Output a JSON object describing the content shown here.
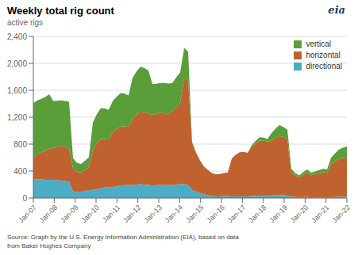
{
  "chart_data": {
    "type": "area",
    "stacked": true,
    "title": "Weekly total rig count",
    "subtitle": "active rigs",
    "annotations": [
      "Source: Graph by the U.S. Energy Information Administration (EIA), based on data\nfrom Baker Hughes Company",
      "eia"
    ],
    "x": [
      0,
      0.1899,
      0.3797,
      0.5696,
      0.7595,
      0.9494,
      1.1392,
      1.3291,
      1.519,
      1.7089,
      1.8987,
      2.0886,
      2.2785,
      2.4684,
      2.6582,
      2.8481,
      3.038,
      3.2278,
      3.4177,
      3.6076,
      3.7975,
      3.9873,
      4.1772,
      4.3671,
      4.557,
      4.7468,
      4.9367,
      5.1266,
      5.3165,
      5.5063,
      5.6962,
      5.8861,
      6.0759,
      6.2658,
      6.4557,
      6.6456,
      6.8354,
      7.0253,
      7.2152,
      7.4051,
      7.5949,
      7.7848,
      7.9747,
      8.1646,
      8.3544,
      8.5443,
      8.7342,
      8.9241,
      9.1139,
      9.3038,
      9.4937,
      9.6835,
      9.8734,
      10.0633,
      10.2532,
      10.443,
      10.6329,
      10.8228,
      11.0127,
      11.2025,
      11.3924,
      11.5823,
      11.7722,
      11.962,
      12.1519,
      12.3418,
      12.5316,
      12.7215,
      12.9114,
      13.1013,
      13.2911,
      13.481,
      13.6709,
      13.8608,
      14.0506,
      14.2405,
      14.4304,
      14.6203,
      14.8101,
      15
    ],
    "xlim": [
      0,
      15
    ],
    "xticks": [
      {
        "value": 0,
        "label": "Jan-07"
      },
      {
        "value": 1,
        "label": "Jan-08"
      },
      {
        "value": 2,
        "label": "Jan-09"
      },
      {
        "value": 3,
        "label": "Jan-10"
      },
      {
        "value": 4,
        "label": "Jan-11"
      },
      {
        "value": 5,
        "label": "Jan-12"
      },
      {
        "value": 6,
        "label": "Jan-13"
      },
      {
        "value": 7,
        "label": "Jan-14"
      },
      {
        "value": 8,
        "label": "Jan-15"
      },
      {
        "value": 9,
        "label": "Jan-16"
      },
      {
        "value": 10,
        "label": "Jan-17"
      },
      {
        "value": 11,
        "label": "Jan-18"
      },
      {
        "value": 12,
        "label": "Jan-19"
      },
      {
        "value": 13,
        "label": "Jan-20"
      },
      {
        "value": 14,
        "label": "Jan-21"
      },
      {
        "value": 15,
        "label": "Jan-22"
      }
    ],
    "ylim": [
      0,
      2400
    ],
    "yticks": [
      0,
      400,
      800,
      {
        "value": 1200,
        "label": "1,200"
      },
      {
        "value": 1600,
        "label": "1,600"
      },
      {
        "value": 2000,
        "label": "2,000"
      },
      {
        "value": 2400,
        "label": "2,400"
      }
    ],
    "grid": true,
    "legend": "upper right",
    "series": [
      {
        "name": "directional",
        "color": "#4bacc6",
        "values": [
          270,
          280,
          280,
          270,
          270,
          270,
          265,
          260,
          250,
          240,
          100,
          85,
          90,
          105,
          115,
          120,
          130,
          145,
          155,
          160,
          165,
          175,
          185,
          190,
          190,
          195,
          200,
          205,
          200,
          195,
          185,
          190,
          195,
          195,
          190,
          195,
          200,
          210,
          205,
          195,
          120,
          95,
          75,
          55,
          40,
          30,
          25,
          25,
          28,
          30,
          25,
          25,
          25,
          25,
          25,
          28,
          30,
          33,
          32,
          28,
          38,
          42,
          45,
          40,
          35,
          20,
          15,
          12,
          15,
          18,
          8,
          6,
          5,
          8,
          10,
          12,
          15,
          18,
          20,
          20
        ]
      },
      {
        "name": "horizontal",
        "color": "#c0622f",
        "values": [
          320,
          370,
          400,
          430,
          460,
          470,
          490,
          520,
          510,
          490,
          340,
          300,
          290,
          310,
          340,
          600,
          680,
          730,
          720,
          710,
          810,
          850,
          880,
          875,
          865,
          980,
          1040,
          1080,
          1075,
          1060,
          1050,
          1060,
          1075,
          1065,
          1050,
          1090,
          1150,
          1200,
          1580,
          1550,
          700,
          580,
          480,
          410,
          375,
          340,
          328,
          330,
          342,
          350,
          560,
          620,
          655,
          660,
          645,
          730,
          780,
          820,
          820,
          810,
          810,
          850,
          875,
          865,
          840,
          360,
          315,
          295,
          330,
          355,
          330,
          345,
          360,
          375,
          365,
          490,
          530,
          560,
          575,
          580
        ]
      },
      {
        "name": "vertical",
        "color": "#5a9e3a",
        "values": [
          820,
          800,
          790,
          800,
          810,
          700,
          690,
          670,
          680,
          700,
          155,
          135,
          125,
          138,
          150,
          400,
          435,
          460,
          455,
          440,
          465,
          480,
          495,
          485,
          470,
          610,
          640,
          665,
          655,
          640,
          455,
          448,
          440,
          450,
          460,
          420,
          440,
          455,
          445,
          430,
          10,
          5,
          3,
          2,
          1,
          0,
          0,
          0,
          0,
          0,
          0,
          0,
          0,
          0,
          0,
          25,
          38,
          50,
          45,
          38,
          115,
          138,
          162,
          152,
          140,
          55,
          38,
          28,
          40,
          52,
          38,
          43,
          50,
          52,
          48,
          95,
          118,
          142,
          152,
          165
        ]
      }
    ]
  }
}
